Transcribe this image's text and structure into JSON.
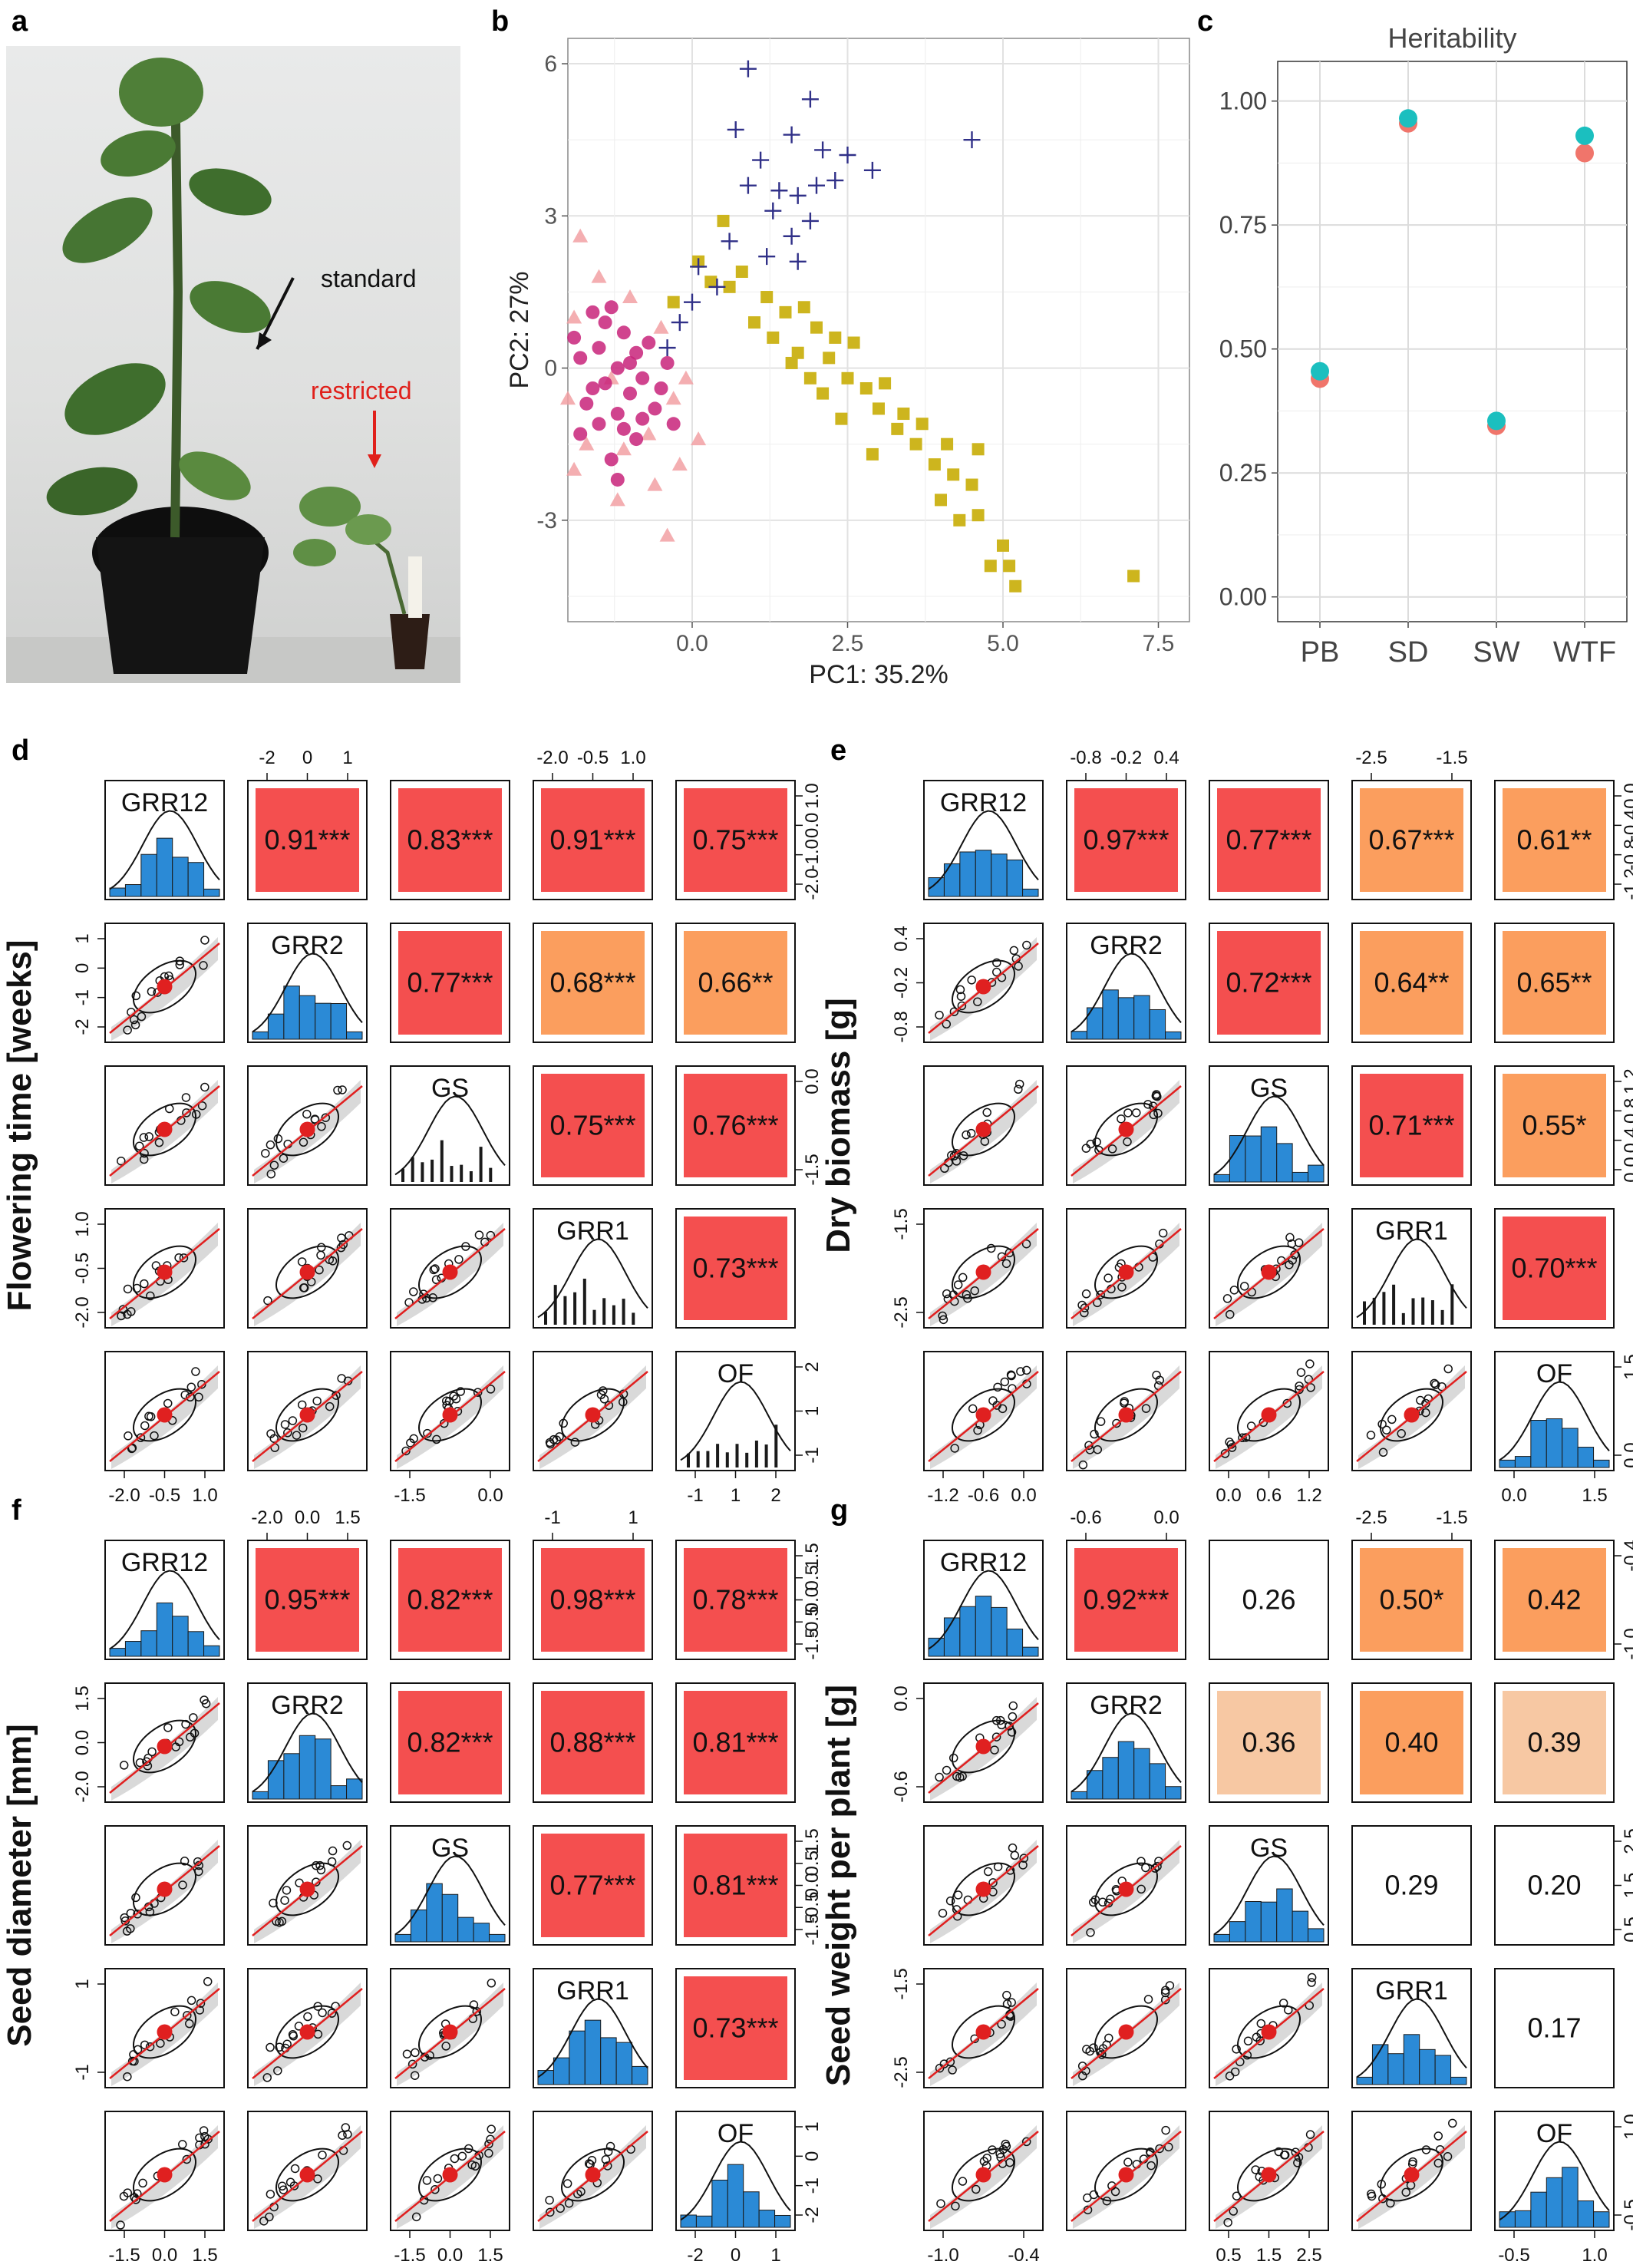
{
  "panel_letters": [
    "a",
    "b",
    "c",
    "d",
    "e",
    "f",
    "g"
  ],
  "photo": {
    "labels": [
      "standard",
      "restricted"
    ],
    "colors": {
      "standard": "#111111",
      "restricted": "#e0201b"
    }
  },
  "colors": {
    "pca_circle": "#c8237a",
    "pca_triangle": "#f2a0a3",
    "pca_square": "#cdb51e",
    "pca_plus": "#303088",
    "herit_a": "#f0756b",
    "herit_b": "#1bbfbf",
    "corr_strong": "#f44f4f",
    "corr_mid": "#fb9e5e",
    "corr_weak": "#f7c8a3",
    "hist": "#2b8ad6",
    "fit": "#e02020"
  },
  "chart_data": [
    {
      "panel": "b",
      "type": "scatter",
      "xlabel": "PC1: 35.2%",
      "ylabel": "PC2: 27%",
      "xticks": [
        "0.0",
        "2.5",
        "5.0",
        "7.5"
      ],
      "yticks": [
        "-3",
        "0",
        "3",
        "6"
      ],
      "xlim": [
        -2,
        8
      ],
      "ylim": [
        -5,
        6.5
      ],
      "grid": true,
      "series": [
        {
          "marker": "circle",
          "points": [
            [
              -1.6,
              1.1
            ],
            [
              -1.3,
              1.2
            ],
            [
              -1.1,
              0.7
            ],
            [
              -1.5,
              0.4
            ],
            [
              -1.8,
              0.2
            ],
            [
              -1.2,
              0.0
            ],
            [
              -0.9,
              0.3
            ],
            [
              -0.7,
              0.5
            ],
            [
              -1.4,
              -0.3
            ],
            [
              -1.0,
              -0.5
            ],
            [
              -1.7,
              -0.7
            ],
            [
              -1.2,
              -0.9
            ],
            [
              -0.8,
              -0.2
            ],
            [
              -0.6,
              -0.8
            ],
            [
              -1.5,
              -1.1
            ],
            [
              -0.9,
              -1.4
            ],
            [
              -1.3,
              -1.8
            ],
            [
              -0.5,
              -0.4
            ],
            [
              -0.4,
              0.1
            ],
            [
              -1.1,
              -1.2
            ],
            [
              -1.6,
              -0.4
            ],
            [
              -1.9,
              0.6
            ],
            [
              -1.0,
              0.1
            ],
            [
              -0.8,
              -1.0
            ],
            [
              -1.4,
              0.9
            ],
            [
              -1.2,
              -2.2
            ],
            [
              -0.3,
              -1.1
            ],
            [
              -1.8,
              -1.3
            ]
          ]
        },
        {
          "marker": "triangle",
          "points": [
            [
              -1.8,
              2.6
            ],
            [
              -1.5,
              1.8
            ],
            [
              -1.9,
              1.0
            ],
            [
              -1.3,
              -0.2
            ],
            [
              -2.0,
              -0.6
            ],
            [
              -1.7,
              -1.5
            ],
            [
              -1.1,
              -1.6
            ],
            [
              -0.7,
              -1.3
            ],
            [
              -0.3,
              -0.6
            ],
            [
              -0.2,
              -1.9
            ],
            [
              -0.6,
              -2.3
            ],
            [
              -1.2,
              -2.6
            ],
            [
              -0.4,
              -3.3
            ],
            [
              -1.9,
              -2.0
            ],
            [
              -0.1,
              -0.2
            ],
            [
              0.1,
              -1.4
            ],
            [
              -0.5,
              0.8
            ],
            [
              -1.0,
              1.4
            ]
          ]
        },
        {
          "marker": "square",
          "points": [
            [
              -0.3,
              1.3
            ],
            [
              0.1,
              2.1
            ],
            [
              0.5,
              2.9
            ],
            [
              0.8,
              1.9
            ],
            [
              1.2,
              1.4
            ],
            [
              1.5,
              1.1
            ],
            [
              1.8,
              1.2
            ],
            [
              2.0,
              0.8
            ],
            [
              1.3,
              0.6
            ],
            [
              1.7,
              0.3
            ],
            [
              2.2,
              0.2
            ],
            [
              2.5,
              -0.2
            ],
            [
              2.1,
              -0.5
            ],
            [
              2.8,
              -0.4
            ],
            [
              3.0,
              -0.8
            ],
            [
              2.4,
              -1.0
            ],
            [
              3.3,
              -1.2
            ],
            [
              3.6,
              -1.5
            ],
            [
              2.9,
              -1.7
            ],
            [
              3.9,
              -1.9
            ],
            [
              4.2,
              -2.1
            ],
            [
              4.5,
              -2.3
            ],
            [
              4.0,
              -2.6
            ],
            [
              4.6,
              -2.9
            ],
            [
              4.3,
              -3.0
            ],
            [
              5.0,
              -3.5
            ],
            [
              4.8,
              -3.9
            ],
            [
              5.2,
              -4.3
            ],
            [
              5.1,
              -3.9
            ],
            [
              7.1,
              -4.1
            ],
            [
              1.0,
              0.9
            ],
            [
              0.6,
              1.6
            ],
            [
              2.6,
              0.5
            ],
            [
              3.4,
              -0.9
            ],
            [
              1.9,
              -0.2
            ],
            [
              2.3,
              0.6
            ],
            [
              3.1,
              -0.3
            ],
            [
              3.7,
              -1.1
            ],
            [
              4.1,
              -1.5
            ],
            [
              4.6,
              -1.6
            ],
            [
              0.3,
              1.7
            ],
            [
              1.6,
              0.1
            ]
          ]
        },
        {
          "marker": "plus",
          "points": [
            [
              0.9,
              5.9
            ],
            [
              1.9,
              5.3
            ],
            [
              0.7,
              4.7
            ],
            [
              1.6,
              4.6
            ],
            [
              2.1,
              4.3
            ],
            [
              2.5,
              4.2
            ],
            [
              1.1,
              4.1
            ],
            [
              0.9,
              3.6
            ],
            [
              1.4,
              3.5
            ],
            [
              1.7,
              3.4
            ],
            [
              2.3,
              3.7
            ],
            [
              2.9,
              3.9
            ],
            [
              1.3,
              3.1
            ],
            [
              1.9,
              2.9
            ],
            [
              0.6,
              2.5
            ],
            [
              1.2,
              2.2
            ],
            [
              1.7,
              2.1
            ],
            [
              0.1,
              2.0
            ],
            [
              0.4,
              1.6
            ],
            [
              0.0,
              1.3
            ],
            [
              -0.2,
              0.9
            ],
            [
              -0.4,
              0.4
            ],
            [
              4.5,
              4.5
            ],
            [
              1.6,
              2.6
            ],
            [
              2.0,
              3.6
            ]
          ]
        }
      ]
    },
    {
      "panel": "c",
      "type": "scatter",
      "title": "Heritability",
      "categories": [
        "PB",
        "SD",
        "SW",
        "WTF"
      ],
      "yticks": [
        "0.00",
        "0.25",
        "0.50",
        "0.75",
        "1.00"
      ],
      "ylim": [
        -0.05,
        1.08
      ],
      "grid": true,
      "series": [
        {
          "values": [
            0.44,
            0.955,
            0.345,
            0.895
          ]
        },
        {
          "values": [
            0.455,
            0.965,
            0.355,
            0.93
          ]
        }
      ]
    },
    {
      "panel": "d",
      "type": "heatmap",
      "ylabel": "Flowering time [weeks]",
      "variables": [
        "GRR12",
        "GRR2",
        "GS",
        "GRR1",
        "OF"
      ],
      "diag_style": [
        "hist",
        "hist",
        "rug",
        "rug",
        "rug"
      ],
      "top_ticks": {
        "1": [
          "-2",
          "0",
          "1"
        ],
        "3": [
          "-2.0",
          "-0.5",
          "1.0"
        ]
      },
      "right_ticks": {
        "0": [
          "1.0",
          "0.0",
          "-1.0",
          "-2.0"
        ],
        "2": [
          "0.0",
          "-1.5"
        ],
        "4": [
          "2",
          "1",
          "-1"
        ]
      },
      "left_ticks": {
        "1": [
          "1",
          "0",
          "-1",
          "-2"
        ],
        "3": [
          "1.0",
          "-0.5",
          "-2.0"
        ]
      },
      "bottom_ticks": {
        "0": [
          "-2.0",
          "-0.5",
          "1.0"
        ],
        "2": [
          "-1.5",
          "0.0"
        ],
        "4": [
          "-1",
          "1",
          "2"
        ]
      },
      "cells": [
        {
          "row": 0,
          "col": 1,
          "value": "0.91***",
          "color": "#f44f4f"
        },
        {
          "row": 0,
          "col": 2,
          "value": "0.83***",
          "color": "#f44f4f"
        },
        {
          "row": 0,
          "col": 3,
          "value": "0.91***",
          "color": "#f44f4f"
        },
        {
          "row": 0,
          "col": 4,
          "value": "0.75***",
          "color": "#f44f4f"
        },
        {
          "row": 1,
          "col": 2,
          "value": "0.77***",
          "color": "#f44f4f"
        },
        {
          "row": 1,
          "col": 3,
          "value": "0.68***",
          "color": "#fb9e5e"
        },
        {
          "row": 1,
          "col": 4,
          "value": "0.66**",
          "color": "#fb9e5e"
        },
        {
          "row": 2,
          "col": 3,
          "value": "0.75***",
          "color": "#f44f4f"
        },
        {
          "row": 2,
          "col": 4,
          "value": "0.76***",
          "color": "#f44f4f"
        },
        {
          "row": 3,
          "col": 4,
          "value": "0.73***",
          "color": "#f44f4f"
        }
      ]
    },
    {
      "panel": "e",
      "type": "heatmap",
      "ylabel": "Dry biomass [g]",
      "variables": [
        "GRR12",
        "GRR2",
        "GS",
        "GRR1",
        "OF"
      ],
      "diag_style": [
        "hist",
        "hist",
        "hist",
        "rug",
        "hist"
      ],
      "top_ticks": {
        "1": [
          "-0.8",
          "-0.2",
          "0.4"
        ],
        "3": [
          "-2.5",
          "-1.5"
        ]
      },
      "right_ticks": {
        "0": [
          "0.0",
          "-0.4",
          "-0.8",
          "-1.2"
        ],
        "2": [
          "1.2",
          "0.8",
          "0.4",
          "0.0"
        ],
        "4": [
          "1.5",
          "0.0"
        ]
      },
      "left_ticks": {
        "1": [
          "0.4",
          "-0.2",
          "-0.8"
        ],
        "3": [
          "-1.5",
          "-2.5"
        ]
      },
      "bottom_ticks": {
        "0": [
          "-1.2",
          "-0.6",
          "0.0"
        ],
        "2": [
          "0.0",
          "0.6",
          "1.2"
        ],
        "4": [
          "0.0",
          "1.5"
        ]
      },
      "cells": [
        {
          "row": 0,
          "col": 1,
          "value": "0.97***",
          "color": "#f44f4f"
        },
        {
          "row": 0,
          "col": 2,
          "value": "0.77***",
          "color": "#f44f4f"
        },
        {
          "row": 0,
          "col": 3,
          "value": "0.67***",
          "color": "#fb9e5e"
        },
        {
          "row": 0,
          "col": 4,
          "value": "0.61**",
          "color": "#fb9e5e"
        },
        {
          "row": 1,
          "col": 2,
          "value": "0.72***",
          "color": "#f44f4f"
        },
        {
          "row": 1,
          "col": 3,
          "value": "0.64**",
          "color": "#fb9e5e"
        },
        {
          "row": 1,
          "col": 4,
          "value": "0.65**",
          "color": "#fb9e5e"
        },
        {
          "row": 2,
          "col": 3,
          "value": "0.71***",
          "color": "#f44f4f"
        },
        {
          "row": 2,
          "col": 4,
          "value": "0.55*",
          "color": "#fb9e5e"
        },
        {
          "row": 3,
          "col": 4,
          "value": "0.70***",
          "color": "#f44f4f"
        }
      ]
    },
    {
      "panel": "f",
      "type": "heatmap",
      "ylabel": "Seed diameter [mm]",
      "variables": [
        "GRR12",
        "GRR2",
        "GS",
        "GRR1",
        "OF"
      ],
      "diag_style": [
        "hist",
        "hist",
        "hist",
        "hist",
        "hist"
      ],
      "top_ticks": {
        "1": [
          "-2.0",
          "0.0",
          "1.5"
        ],
        "3": [
          "-1",
          "1"
        ]
      },
      "right_ticks": {
        "0": [
          "1.5",
          "0.5",
          "0.0",
          "-0.5",
          "-1.5"
        ],
        "2": [
          "1.5",
          "0.5",
          "0.0",
          "-0.5",
          "-1.5"
        ],
        "4": [
          "1",
          "0",
          "-1",
          "-2"
        ]
      },
      "left_ticks": {
        "1": [
          "1.5",
          "0.0",
          "-2.0"
        ],
        "3": [
          "1",
          "-1"
        ]
      },
      "bottom_ticks": {
        "0": [
          "-1.5",
          "0.0",
          "1.5"
        ],
        "2": [
          "-1.5",
          "0.0",
          "1.5"
        ],
        "4": [
          "-2",
          "0",
          "1"
        ]
      },
      "cells": [
        {
          "row": 0,
          "col": 1,
          "value": "0.95***",
          "color": "#f44f4f"
        },
        {
          "row": 0,
          "col": 2,
          "value": "0.82***",
          "color": "#f44f4f"
        },
        {
          "row": 0,
          "col": 3,
          "value": "0.98***",
          "color": "#f44f4f"
        },
        {
          "row": 0,
          "col": 4,
          "value": "0.78***",
          "color": "#f44f4f"
        },
        {
          "row": 1,
          "col": 2,
          "value": "0.82***",
          "color": "#f44f4f"
        },
        {
          "row": 1,
          "col": 3,
          "value": "0.88***",
          "color": "#f44f4f"
        },
        {
          "row": 1,
          "col": 4,
          "value": "0.81***",
          "color": "#f44f4f"
        },
        {
          "row": 2,
          "col": 3,
          "value": "0.77***",
          "color": "#f44f4f"
        },
        {
          "row": 2,
          "col": 4,
          "value": "0.81***",
          "color": "#f44f4f"
        },
        {
          "row": 3,
          "col": 4,
          "value": "0.73***",
          "color": "#f44f4f"
        }
      ]
    },
    {
      "panel": "g",
      "type": "heatmap",
      "ylabel": "Seed weight per plant [g]",
      "variables": [
        "GRR12",
        "GRR2",
        "GS",
        "GRR1",
        "OF"
      ],
      "diag_style": [
        "hist",
        "hist",
        "hist",
        "hist",
        "hist"
      ],
      "top_ticks": {
        "1": [
          "-0.6",
          "0.0"
        ],
        "3": [
          "-2.5",
          "-1.5"
        ]
      },
      "right_ticks": {
        "0": [
          "-0.4",
          "-1.0"
        ],
        "2": [
          "2.5",
          "1.5",
          "0.5"
        ],
        "4": [
          "1.0",
          "-0.5"
        ]
      },
      "left_ticks": {
        "1": [
          "0.0",
          "-0.6"
        ],
        "3": [
          "-1.5",
          "-2.5"
        ]
      },
      "bottom_ticks": {
        "0": [
          "-1.0",
          "-0.4"
        ],
        "2": [
          "0.5",
          "1.5",
          "2.5"
        ],
        "4": [
          "-0.5",
          "1.0"
        ]
      },
      "cells": [
        {
          "row": 0,
          "col": 1,
          "value": "0.92***",
          "color": "#f44f4f"
        },
        {
          "row": 0,
          "col": 2,
          "value": "0.26",
          "color": "#ffffff"
        },
        {
          "row": 0,
          "col": 3,
          "value": "0.50*",
          "color": "#fb9e5e"
        },
        {
          "row": 0,
          "col": 4,
          "value": "0.42",
          "color": "#fb9e5e"
        },
        {
          "row": 1,
          "col": 2,
          "value": "0.36",
          "color": "#f7c8a3"
        },
        {
          "row": 1,
          "col": 3,
          "value": "0.40",
          "color": "#fb9e5e"
        },
        {
          "row": 1,
          "col": 4,
          "value": "0.39",
          "color": "#f7c8a3"
        },
        {
          "row": 2,
          "col": 3,
          "value": "0.29",
          "color": "#ffffff"
        },
        {
          "row": 2,
          "col": 4,
          "value": "0.20",
          "color": "#ffffff"
        },
        {
          "row": 3,
          "col": 4,
          "value": "0.17",
          "color": "#ffffff"
        }
      ]
    }
  ]
}
